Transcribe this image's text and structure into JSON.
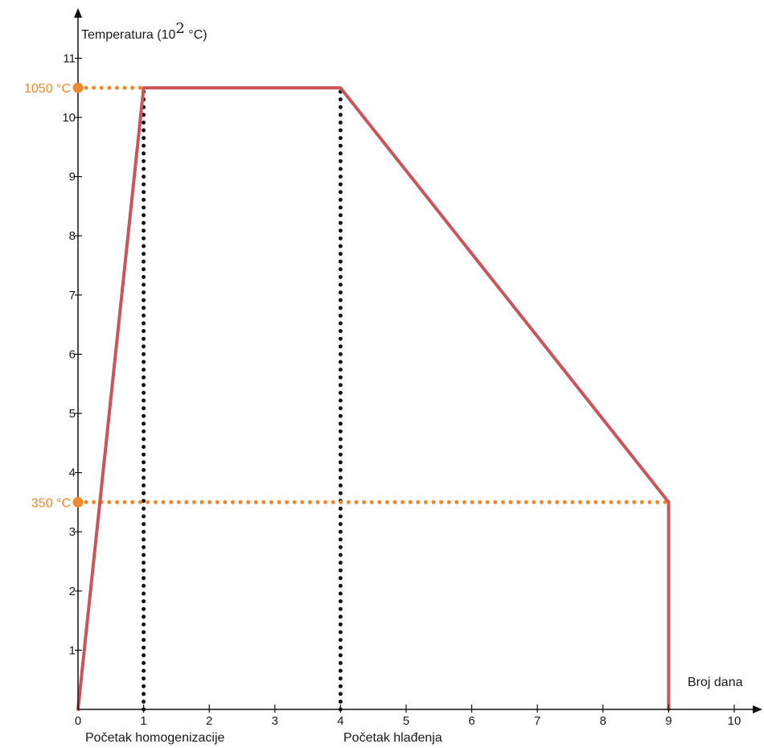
{
  "chart_data": {
    "type": "line",
    "ylabel": "Temperatura (10",
    "ylabel_sup": "2",
    "ylabel_unit": " °C)",
    "xlabel": "Broj dana",
    "xlim": [
      0,
      10
    ],
    "ylim": [
      0,
      11
    ],
    "x_ticks": [
      0,
      1,
      2,
      3,
      4,
      5,
      6,
      7,
      8,
      9,
      10
    ],
    "y_ticks": [
      1,
      2,
      3,
      4,
      5,
      6,
      7,
      8,
      9,
      10,
      11
    ],
    "series": [
      {
        "color": "#c9555a",
        "points": [
          [
            0,
            0
          ],
          [
            1,
            10.5
          ],
          [
            4,
            10.5
          ],
          [
            9,
            3.5
          ],
          [
            9,
            0
          ]
        ]
      }
    ],
    "vertical_markers": [
      {
        "x": 1,
        "label": "Početak homogenizacije",
        "color": "#111111"
      },
      {
        "x": 4,
        "label": "Početak hlađenja",
        "color": "#111111"
      }
    ],
    "horizontal_markers": [
      {
        "y": 10.5,
        "x_end": 1,
        "label": "1050 °C",
        "color": "#f0892d"
      },
      {
        "y": 3.5,
        "x_end": 9,
        "label": "350 °C",
        "color": "#f0892d"
      }
    ],
    "grid": false
  }
}
